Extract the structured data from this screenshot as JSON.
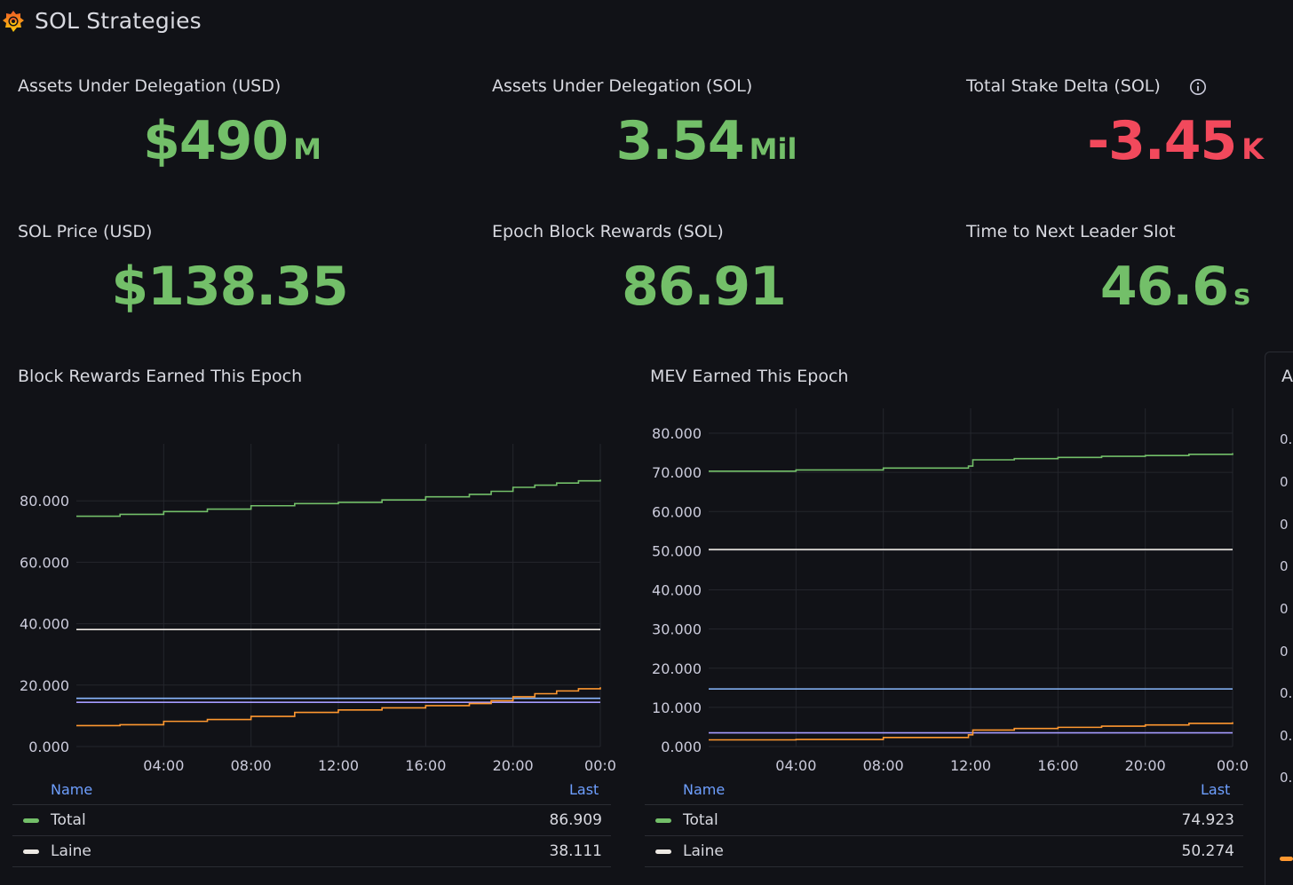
{
  "app": {
    "title": "SOL Strategies",
    "logo_icon": "grafana-logo-icon"
  },
  "stats": [
    {
      "title": "Assets Under Delegation (USD)",
      "value": "$490",
      "unit": "M",
      "color": "#73bf69"
    },
    {
      "title": "Assets Under Delegation (SOL)",
      "value": "3.54",
      "unit": "Mil",
      "color": "#73bf69"
    },
    {
      "title": "Total Stake Delta (SOL)",
      "value": "-3.45",
      "unit": "K",
      "color": "#f2495c"
    },
    {
      "title": "SOL Price (USD)",
      "value": "$138.35",
      "unit": "",
      "color": "#73bf69"
    },
    {
      "title": "Epoch Block Rewards (SOL)",
      "value": "86.91",
      "unit": "",
      "color": "#73bf69"
    },
    {
      "title": "Time to Next Leader Slot",
      "value": "46.6",
      "unit": "s",
      "color": "#73bf69"
    }
  ],
  "chart_data": [
    {
      "type": "line",
      "title": "Block Rewards Earned This Epoch",
      "x_ticks": [
        "04:00",
        "08:00",
        "12:00",
        "16:00",
        "20:00",
        "00:0"
      ],
      "x_range_hours": [
        0,
        24
      ],
      "y_ticks": [
        "0.000",
        "20.000",
        "40.000",
        "60.000",
        "80.000"
      ],
      "ylim": [
        0,
        87
      ],
      "legend_header": {
        "name": "Name",
        "last": "Last"
      },
      "series": [
        {
          "name": "Total",
          "color": "#73bf69",
          "last": "86.909",
          "x": [
            0,
            2,
            4,
            6,
            8,
            10,
            12,
            14,
            16,
            18,
            19,
            20,
            21,
            22,
            23,
            24
          ],
          "y": [
            75,
            75.6,
            76.5,
            77.3,
            78.4,
            79.1,
            79.5,
            80.3,
            81.3,
            82.1,
            83.1,
            84.4,
            85.1,
            85.8,
            86.5,
            86.9
          ]
        },
        {
          "name": "Laine",
          "color": "#ede9e4",
          "last": "38.111",
          "x": [
            0,
            24
          ],
          "y": [
            38.1,
            38.1
          ]
        },
        {
          "name": "",
          "color": "#8ab8ff",
          "last": "",
          "x": [
            0,
            24
          ],
          "y": [
            15.7,
            15.7
          ]
        },
        {
          "name": "",
          "color": "#a59bff",
          "last": "",
          "x": [
            0,
            24
          ],
          "y": [
            14.4,
            14.4
          ]
        },
        {
          "name": "",
          "color": "#ff9830",
          "last": "",
          "x": [
            0,
            2,
            4,
            6,
            8,
            10,
            12,
            14,
            16,
            18,
            19,
            20,
            21,
            22,
            23,
            24
          ],
          "y": [
            6.8,
            7.1,
            8.2,
            8.8,
            9.8,
            11.1,
            11.9,
            12.6,
            13.3,
            14,
            14.9,
            16.2,
            17.2,
            18.1,
            18.8,
            19.3
          ]
        }
      ]
    },
    {
      "type": "line",
      "title": "MEV Earned This Epoch",
      "x_ticks": [
        "04:00",
        "08:00",
        "12:00",
        "16:00",
        "20:00",
        "00:0"
      ],
      "x_range_hours": [
        0,
        24
      ],
      "y_ticks": [
        "0.000",
        "10.000",
        "20.000",
        "30.000",
        "40.000",
        "50.000",
        "60.000",
        "70.000",
        "80.000"
      ],
      "ylim": [
        0,
        80
      ],
      "legend_header": {
        "name": "Name",
        "last": "Last"
      },
      "series": [
        {
          "name": "Total",
          "color": "#73bf69",
          "last": "74.923",
          "x": [
            0,
            4,
            8,
            11.9,
            12.1,
            14,
            16,
            18,
            20,
            22,
            24
          ],
          "y": [
            70.3,
            70.6,
            71.1,
            71.6,
            73.2,
            73.5,
            73.8,
            74.1,
            74.3,
            74.6,
            74.9
          ]
        },
        {
          "name": "Laine",
          "color": "#ede9e4",
          "last": "50.274",
          "x": [
            0,
            24
          ],
          "y": [
            50.3,
            50.3
          ]
        },
        {
          "name": "",
          "color": "#8ab8ff",
          "last": "",
          "x": [
            0,
            24
          ],
          "y": [
            14.7,
            14.7
          ]
        },
        {
          "name": "",
          "color": "#a59bff",
          "last": "",
          "x": [
            0,
            24
          ],
          "y": [
            3.5,
            3.5
          ]
        },
        {
          "name": "",
          "color": "#ff9830",
          "last": "",
          "x": [
            0,
            4,
            8,
            11.9,
            12.1,
            14,
            16,
            18,
            20,
            22,
            24
          ],
          "y": [
            1.7,
            1.8,
            2.3,
            3,
            4.2,
            4.6,
            4.9,
            5.2,
            5.5,
            5.9,
            6.2
          ]
        }
      ]
    }
  ],
  "third_panel": {
    "title_fragment": "A",
    "y_tick_fragments": [
      "0.",
      "0",
      "0",
      "0",
      "0",
      "0",
      "0.",
      "0.",
      "0."
    ]
  }
}
